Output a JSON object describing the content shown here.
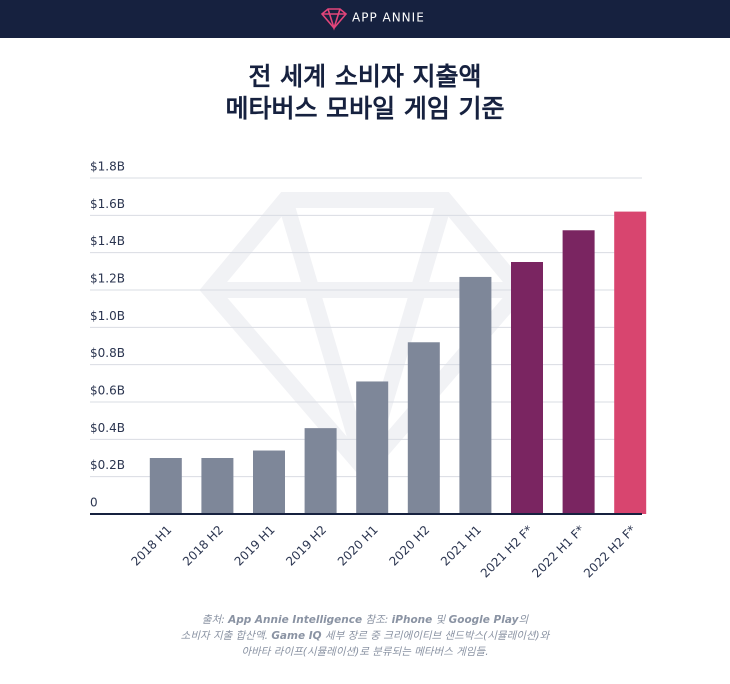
{
  "header": {
    "brand": "APP ANNIE"
  },
  "chart_data": {
    "type": "bar",
    "title": [
      "전 세계 소비자 지출액",
      "메타버스 모바일 게임 기준"
    ],
    "categories": [
      "2018 H1",
      "2018 H2",
      "2019 H1",
      "2019 H2",
      "2020 H1",
      "2020 H2",
      "2021 H1",
      "2021 H2 F*",
      "2022 H1 F*",
      "2022 H2 F*"
    ],
    "values": [
      0.3,
      0.3,
      0.34,
      0.46,
      0.71,
      0.92,
      1.27,
      1.35,
      1.52,
      1.62
    ],
    "colors": [
      "#7e8799",
      "#7e8799",
      "#7e8799",
      "#7e8799",
      "#7e8799",
      "#7e8799",
      "#7e8799",
      "#7a2561",
      "#7a2561",
      "#d8456f"
    ],
    "ylim": [
      0,
      1.8
    ],
    "yticks": [
      0,
      {
        "value": 0.2,
        "label": "$0.2B"
      },
      {
        "value": 0.4,
        "label": "$0.4B"
      },
      {
        "value": 0.6,
        "label": "$0.6B"
      },
      {
        "value": 0.8,
        "label": "$0.8B"
      },
      {
        "value": 1.0,
        "label": "$1.0B"
      },
      {
        "value": 1.2,
        "label": "$1.2B"
      },
      {
        "value": 1.4,
        "label": "$1.4B"
      },
      {
        "value": 1.6,
        "label": "$1.6B"
      },
      {
        "value": 1.8,
        "label": "$1.8B"
      }
    ],
    "grid": true
  },
  "footnote": [
    [
      {
        "text": "출처: "
      },
      {
        "text": "App Annie Intelligence",
        "bold": true
      },
      {
        "text": " 참조: "
      },
      {
        "text": "iPhone",
        "bold": true
      },
      {
        "text": " 및 "
      },
      {
        "text": "Google Play",
        "bold": true
      },
      {
        "text": "의"
      }
    ],
    [
      {
        "text": "소비자 지출 합산액. "
      },
      {
        "text": "Game IQ",
        "bold": true
      },
      {
        "text": " 세부 장르 중 크리에이티브 샌드박스(시뮬레이션)와"
      }
    ],
    [
      {
        "text": "아바타 라이프(시뮬레이션)로 분류되는 메타버스 게임들."
      }
    ]
  ]
}
